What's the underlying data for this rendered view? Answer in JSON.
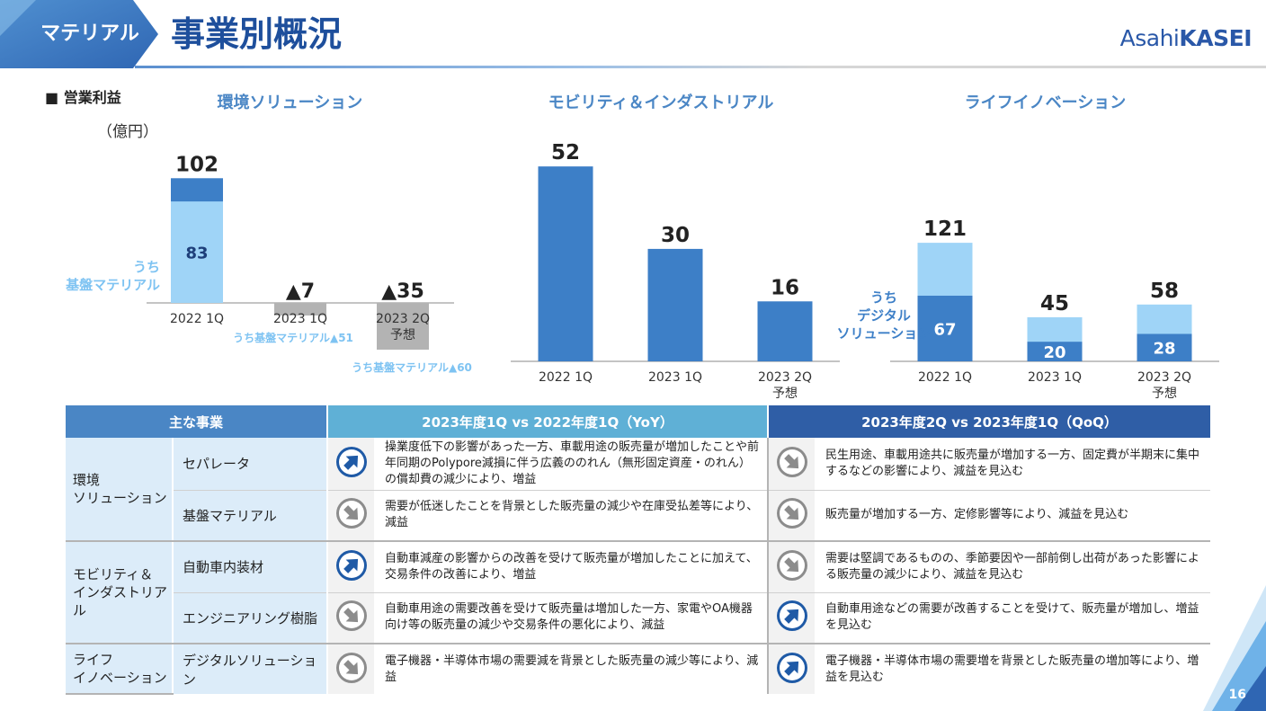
{
  "header": {
    "tag": "マテリアル",
    "title": "事業別概況",
    "logo_light": "Asahi",
    "logo_bold": "KASEI",
    "page_number": "16"
  },
  "colors": {
    "primary": "#1e4f9c",
    "mid_blue": "#4a86c5",
    "light_blue": "#9fd4f7",
    "gray_bar": "#b3b3b3"
  },
  "chart_common": {
    "section_label": "■ 営業利益",
    "unit": "（億円）"
  },
  "chart_data": [
    {
      "type": "bar",
      "title": "環境ソリューション",
      "categories": [
        "2022 1Q",
        "2023 1Q",
        "2023 2Q\n予想"
      ],
      "values": [
        102,
        -7,
        -35
      ],
      "value_labels": [
        "102",
        "▲7",
        "▲35"
      ],
      "sub_series": {
        "name": "うち\n基盤マテリアル",
        "values": [
          83,
          -51,
          -60
        ],
        "value_labels": [
          "83",
          "▲51",
          "▲60"
        ]
      },
      "sub_annotations": [
        "うち基盤マテリアル▲51",
        "うち基盤マテリアル▲60"
      ],
      "ylim": [
        -40,
        110
      ]
    },
    {
      "type": "bar",
      "title": "モビリティ＆インダストリアル",
      "categories": [
        "2022 1Q",
        "2023 1Q",
        "2023 2Q\n予想"
      ],
      "values": [
        52,
        30,
        16
      ],
      "value_labels": [
        "52",
        "30",
        "16"
      ],
      "ylim": [
        0,
        60
      ]
    },
    {
      "type": "bar",
      "title": "ライフイノベーション",
      "categories": [
        "2022 1Q",
        "2023 1Q",
        "2023 2Q\n予想"
      ],
      "values": [
        121,
        45,
        58
      ],
      "value_labels": [
        "121",
        "45",
        "58"
      ],
      "sub_series": {
        "name": "うち\nデジタル\nソリューション",
        "values": [
          67,
          20,
          28
        ],
        "value_labels": [
          "67",
          "20",
          "28"
        ]
      },
      "ylim": [
        0,
        130
      ]
    }
  ],
  "table": {
    "headers": {
      "main": "主な事業",
      "yoy": "2023年度1Q vs 2022年度1Q（YoY）",
      "qoq": "2023年度2Q vs 2023年度1Q（QoQ）"
    },
    "groups": [
      {
        "category": "環境\nソリューション",
        "rows": [
          {
            "business": "セパレータ",
            "yoy_trend": "up",
            "yoy_text": "操業度低下の影響があった一方、車載用途の販売量が増加したことや前年同期のPolypore減損に伴う広義ののれん（無形固定資産・のれん）の償却費の減少により、増益",
            "qoq_trend": "down",
            "qoq_text": "民生用途、車載用途共に販売量が増加する一方、固定費が半期末に集中するなどの影響により、減益を見込む"
          },
          {
            "business": "基盤マテリアル",
            "yoy_trend": "down",
            "yoy_text": "需要が低迷したことを背景とした販売量の減少や在庫受払差等により、減益",
            "qoq_trend": "down",
            "qoq_text": "販売量が増加する一方、定修影響等により、減益を見込む"
          }
        ]
      },
      {
        "category": "モビリティ＆\nインダストリアル",
        "rows": [
          {
            "business": "自動車内装材",
            "yoy_trend": "up",
            "yoy_text": "自動車減産の影響からの改善を受けて販売量が増加したことに加えて、交易条件の改善により、増益",
            "qoq_trend": "down",
            "qoq_text": "需要は堅調であるものの、季節要因や一部前倒し出荷があった影響による販売量の減少により、減益を見込む"
          },
          {
            "business": "エンジニアリング樹脂",
            "yoy_trend": "down",
            "yoy_text": "自動車用途の需要改善を受けて販売量は増加した一方、家電やOA機器向け等の販売量の減少や交易条件の悪化により、減益",
            "qoq_trend": "up",
            "qoq_text": "自動車用途などの需要が改善することを受けて、販売量が増加し、増益を見込む"
          }
        ]
      },
      {
        "category": "ライフ\nイノベーション",
        "rows": [
          {
            "business": "デジタルソリューション",
            "yoy_trend": "down",
            "yoy_text": "電子機器・半導体市場の需要減を背景とした販売量の減少等により、減益",
            "qoq_trend": "up",
            "qoq_text": "電子機器・半導体市場の需要増を背景とした販売量の増加等により、増益を見込む"
          }
        ]
      }
    ]
  }
}
